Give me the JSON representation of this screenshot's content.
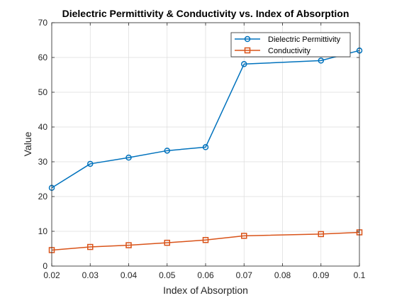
{
  "chart_data": {
    "type": "line",
    "title": "Dielectric Permittivity & Conductivity vs. Index of Absorption",
    "xlabel": "Index of Absorption",
    "ylabel": "Value",
    "xlim": [
      0.02,
      0.1
    ],
    "ylim": [
      0,
      70
    ],
    "xticks": [
      "0.02",
      "0.03",
      "0.04",
      "0.05",
      "0.06",
      "0.07",
      "0.08",
      "0.09",
      "0.1"
    ],
    "yticks": [
      "0",
      "10",
      "20",
      "30",
      "40",
      "50",
      "60",
      "70"
    ],
    "grid": true,
    "legend_position": "top-right",
    "series": [
      {
        "name": "Dielectric Permittivity",
        "color": "#0072BD",
        "marker": "circle",
        "x": [
          0.02,
          0.03,
          0.04,
          0.05,
          0.06,
          0.07,
          0.09,
          0.1
        ],
        "y": [
          22.5,
          29.4,
          31.2,
          33.2,
          34.2,
          58.1,
          59.1,
          62.0
        ]
      },
      {
        "name": "Conductivity",
        "color": "#D95319",
        "marker": "square",
        "x": [
          0.02,
          0.03,
          0.04,
          0.05,
          0.06,
          0.07,
          0.09,
          0.1
        ],
        "y": [
          4.6,
          5.5,
          6.0,
          6.7,
          7.5,
          8.7,
          9.2,
          9.7
        ]
      }
    ]
  }
}
